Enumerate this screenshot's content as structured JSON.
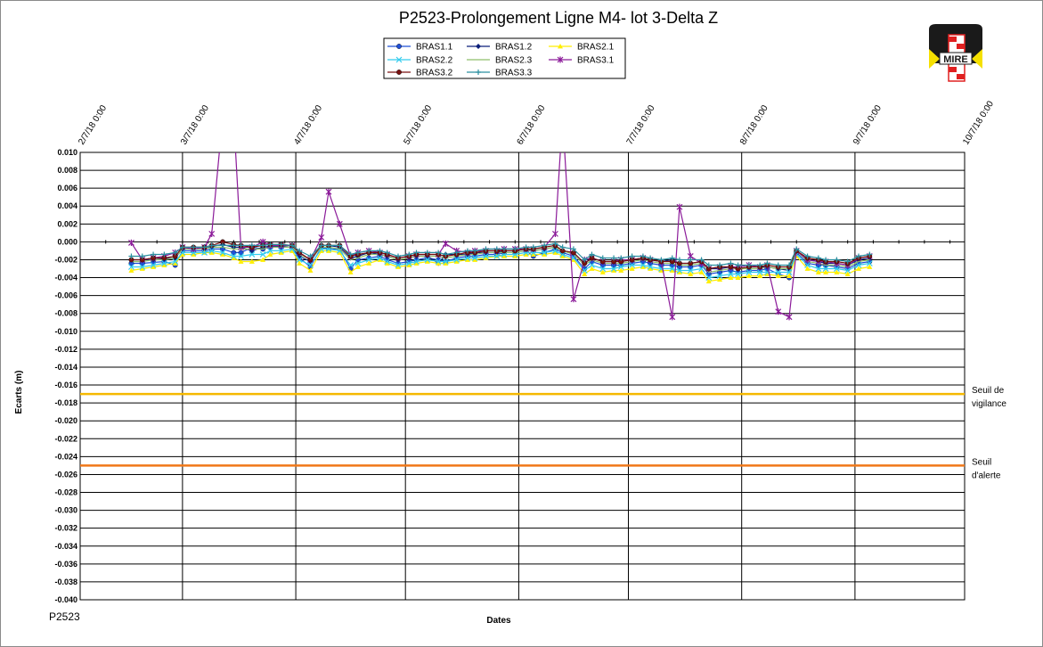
{
  "chart_data": {
    "type": "line",
    "title": "P2523-Prolongement  Ligne  M4-  lot  3-Delta  Z",
    "xlabel": "Dates",
    "ylabel": "Ecarts (m)",
    "footer": "P2523",
    "x_ticks": [
      "2/7/18 0:00",
      "3/7/18 0:00",
      "4/7/18 0:00",
      "5/7/18 0:00",
      "6/7/18 0:00",
      "7/7/18 0:00",
      "8/7/18 0:00",
      "9/7/18 0:00",
      "10/7/18 0:00"
    ],
    "ylim": [
      -0.04,
      0.01
    ],
    "y_ticks": [
      "0.010",
      "0.008",
      "0.006",
      "0.004",
      "0.002",
      "0.000",
      "-0.002",
      "-0.004",
      "-0.006",
      "-0.008",
      "-0.010",
      "-0.012",
      "-0.014",
      "-0.016",
      "-0.018",
      "-0.020",
      "-0.022",
      "-0.024",
      "-0.026",
      "-0.028",
      "-0.030",
      "-0.032",
      "-0.034",
      "-0.036",
      "-0.038",
      "-0.040"
    ],
    "grid": true,
    "legend_position": "top-center",
    "x": [
      "2/21/18",
      "2/24/18",
      "2/27/18",
      "3/2/18",
      "3/5/18",
      "3/7/18",
      "3/10/18",
      "3/13/18",
      "3/15/18",
      "3/18/18",
      "3/21/18",
      "3/23/18",
      "3/26/18",
      "3/29/18",
      "3/31/18",
      "4/3/18",
      "4/6/18",
      "4/8/18",
      "4/11/18",
      "4/14/18",
      "4/16/18",
      "4/19/18",
      "4/22/18",
      "4/24/18",
      "4/27/18",
      "4/30/18",
      "5/2/18",
      "5/5/18",
      "5/8/18",
      "5/10/18",
      "5/13/18",
      "5/16/18",
      "5/18/18",
      "5/21/18",
      "5/24/18",
      "5/26/18",
      "5/29/18",
      "6/1/18",
      "6/3/18",
      "6/6/18",
      "6/9/18",
      "6/11/18",
      "6/14/18",
      "6/17/18",
      "6/19/18",
      "6/22/18",
      "6/25/18",
      "6/27/18",
      "6/30/18",
      "7/3/18",
      "7/5/18",
      "7/8/18",
      "7/11/18",
      "7/13/18",
      "7/16/18",
      "7/19/18",
      "7/21/18",
      "7/24/18",
      "7/27/18",
      "7/29/18",
      "8/1/18",
      "8/4/18",
      "8/6/18",
      "8/9/18",
      "8/12/18",
      "8/14/18",
      "8/17/18",
      "8/20/18",
      "8/22/18",
      "8/25/18",
      "8/28/18",
      "8/30/18",
      "9/2/18",
      "9/5/18",
      "9/8/18",
      "9/11/18"
    ],
    "series": [
      {
        "name": "BRAS1.1",
        "color": "#1f4fd8",
        "marker": "circle",
        "values": [
          -0.0024,
          -0.0024,
          -0.0023,
          -0.0022,
          -0.0026,
          -0.001,
          -0.001,
          -0.001,
          -0.0008,
          -0.0008,
          -0.0012,
          -0.0012,
          -0.0006,
          -0.0008,
          -0.0006,
          -0.0006,
          -0.0006,
          -0.0018,
          -0.0028,
          -0.0006,
          -0.0008,
          -0.0008,
          -0.003,
          -0.002,
          -0.0018,
          -0.0016,
          -0.002,
          -0.0024,
          -0.0022,
          -0.002,
          -0.0018,
          -0.002,
          -0.0022,
          -0.0018,
          -0.0016,
          -0.0016,
          -0.0014,
          -0.0014,
          -0.0012,
          -0.0012,
          -0.001,
          -0.0016,
          -0.0012,
          -0.0008,
          -0.0012,
          -0.0016,
          -0.003,
          -0.0022,
          -0.0026,
          -0.0026,
          -0.0026,
          -0.0024,
          -0.0022,
          -0.0024,
          -0.0026,
          -0.0026,
          -0.0028,
          -0.0028,
          -0.0026,
          -0.0036,
          -0.0034,
          -0.0032,
          -0.0034,
          -0.0032,
          -0.0032,
          -0.003,
          -0.0036,
          -0.004,
          -0.0012,
          -0.0024,
          -0.0026,
          -0.0026,
          -0.0028,
          -0.003,
          -0.0024,
          -0.0022
        ]
      },
      {
        "name": "BRAS1.2",
        "color": "#0c1f7a",
        "marker": "diamond",
        "values": [
          -0.002,
          -0.002,
          -0.002,
          -0.0019,
          -0.0018,
          -0.0008,
          -0.0008,
          -0.0008,
          -0.0005,
          -0.0003,
          -0.0006,
          -0.0006,
          -0.001,
          -0.0006,
          -0.0005,
          -0.0005,
          -0.0006,
          -0.0016,
          -0.0022,
          -0.0004,
          -0.0004,
          -0.0006,
          -0.0018,
          -0.0016,
          -0.0012,
          -0.0014,
          -0.0016,
          -0.002,
          -0.0018,
          -0.0016,
          -0.0016,
          -0.0024,
          -0.0014,
          -0.0014,
          -0.0014,
          -0.0012,
          -0.0012,
          -0.0012,
          -0.001,
          -0.001,
          -0.0008,
          -0.001,
          -0.0008,
          -0.0006,
          -0.001,
          -0.0012,
          -0.0024,
          -0.0018,
          -0.0022,
          -0.0022,
          -0.0022,
          -0.002,
          -0.0018,
          -0.002,
          -0.0022,
          -0.002,
          -0.0024,
          -0.0024,
          -0.0022,
          -0.003,
          -0.003,
          -0.0028,
          -0.003,
          -0.0028,
          -0.0028,
          -0.0028,
          -0.003,
          -0.0032,
          -0.001,
          -0.002,
          -0.0022,
          -0.0024,
          -0.0024,
          -0.0026,
          -0.002,
          -0.0018
        ]
      },
      {
        "name": "BRAS2.1",
        "color": "#ffee00",
        "marker": "triangle",
        "values": [
          -0.0032,
          -0.003,
          -0.0028,
          -0.0026,
          -0.0024,
          -0.0014,
          -0.0014,
          -0.0012,
          -0.0012,
          -0.0014,
          -0.0018,
          -0.0022,
          -0.0022,
          -0.002,
          -0.0014,
          -0.0012,
          -0.001,
          -0.0024,
          -0.0032,
          -0.001,
          -0.001,
          -0.0012,
          -0.0034,
          -0.0028,
          -0.0024,
          -0.002,
          -0.0024,
          -0.0028,
          -0.0026,
          -0.0024,
          -0.0022,
          -0.0024,
          -0.0024,
          -0.0022,
          -0.002,
          -0.002,
          -0.0018,
          -0.0016,
          -0.0016,
          -0.0016,
          -0.0014,
          -0.0014,
          -0.0014,
          -0.0012,
          -0.0016,
          -0.002,
          -0.0036,
          -0.003,
          -0.0034,
          -0.0032,
          -0.0032,
          -0.003,
          -0.0028,
          -0.003,
          -0.0032,
          -0.0032,
          -0.0034,
          -0.0036,
          -0.0034,
          -0.0044,
          -0.0042,
          -0.004,
          -0.004,
          -0.0038,
          -0.0038,
          -0.0036,
          -0.0038,
          -0.0038,
          -0.0016,
          -0.003,
          -0.0034,
          -0.0034,
          -0.0034,
          -0.0036,
          -0.003,
          -0.0028
        ]
      },
      {
        "name": "BRAS2.2",
        "color": "#33ccee",
        "marker": "x",
        "values": [
          -0.0028,
          -0.0028,
          -0.0026,
          -0.0024,
          -0.0022,
          -0.0012,
          -0.0012,
          -0.0012,
          -0.001,
          -0.0012,
          -0.0016,
          -0.0016,
          -0.0014,
          -0.0014,
          -0.001,
          -0.001,
          -0.0008,
          -0.002,
          -0.0026,
          -0.0008,
          -0.0008,
          -0.001,
          -0.0026,
          -0.0024,
          -0.002,
          -0.0018,
          -0.0022,
          -0.0026,
          -0.0024,
          -0.0022,
          -0.002,
          -0.0022,
          -0.0022,
          -0.002,
          -0.0018,
          -0.0018,
          -0.0016,
          -0.0016,
          -0.0014,
          -0.0014,
          -0.0012,
          -0.0012,
          -0.0012,
          -0.001,
          -0.0014,
          -0.0018,
          -0.0032,
          -0.0026,
          -0.003,
          -0.003,
          -0.0028,
          -0.0026,
          -0.0026,
          -0.0028,
          -0.003,
          -0.003,
          -0.0032,
          -0.0032,
          -0.003,
          -0.004,
          -0.0038,
          -0.0036,
          -0.0036,
          -0.0034,
          -0.0034,
          -0.0034,
          -0.0034,
          -0.0034,
          -0.0014,
          -0.0026,
          -0.003,
          -0.003,
          -0.003,
          -0.0032,
          -0.0026,
          -0.0024
        ]
      },
      {
        "name": "BRAS2.3",
        "color": "#8fbf6a",
        "marker": "none",
        "values": [
          -0.0022,
          -0.0022,
          -0.002,
          -0.002,
          -0.0018,
          -0.0008,
          -0.0008,
          -0.0008,
          -0.0006,
          -0.0006,
          -0.0008,
          -0.0008,
          -0.0008,
          -0.0008,
          -0.0006,
          -0.0006,
          -0.0006,
          -0.0014,
          -0.002,
          -0.0006,
          -0.0006,
          -0.0008,
          -0.002,
          -0.0018,
          -0.0014,
          -0.0014,
          -0.0016,
          -0.002,
          -0.0018,
          -0.0016,
          -0.0016,
          -0.0016,
          -0.0018,
          -0.0016,
          -0.0014,
          -0.0014,
          -0.0012,
          -0.0012,
          -0.0012,
          -0.0012,
          -0.001,
          -0.001,
          -0.0008,
          -0.0006,
          -0.001,
          -0.0014,
          -0.0026,
          -0.002,
          -0.0024,
          -0.0024,
          -0.0024,
          -0.0022,
          -0.002,
          -0.0022,
          -0.0024,
          -0.0024,
          -0.0026,
          -0.0026,
          -0.0024,
          -0.0034,
          -0.0032,
          -0.003,
          -0.003,
          -0.003,
          -0.003,
          -0.0028,
          -0.003,
          -0.003,
          -0.001,
          -0.0022,
          -0.0024,
          -0.0026,
          -0.0026,
          -0.0028,
          -0.0022,
          -0.002
        ]
      },
      {
        "name": "BRAS3.1",
        "color": "#8b1a99",
        "marker": "star",
        "values": [
          -0.0001,
          -0.002,
          -0.0018,
          -0.0016,
          -0.0012,
          -0.0006,
          -0.0008,
          -0.0006,
          0.0009,
          0.014,
          0.014,
          -0.0006,
          -0.0006,
          0.0,
          -0.0004,
          -0.0004,
          -0.0004,
          -0.0012,
          -0.002,
          0.0005,
          0.0056,
          0.002,
          -0.0016,
          -0.0012,
          -0.001,
          -0.0012,
          -0.0014,
          -0.0018,
          -0.0016,
          -0.0014,
          -0.0014,
          -0.0014,
          -0.0002,
          -0.001,
          -0.0012,
          -0.001,
          -0.001,
          -0.001,
          -0.0008,
          -0.0008,
          -0.0008,
          -0.0008,
          -0.0006,
          0.0009,
          0.014,
          -0.0064,
          -0.002,
          -0.0018,
          -0.0022,
          -0.0022,
          -0.002,
          -0.002,
          -0.0018,
          -0.002,
          -0.0022,
          -0.0084,
          0.0039,
          -0.0016,
          -0.0024,
          -0.003,
          -0.0028,
          -0.0028,
          -0.0028,
          -0.0026,
          -0.0028,
          -0.0026,
          -0.0078,
          -0.0084,
          -0.001,
          -0.002,
          -0.0022,
          -0.0022,
          -0.0024,
          -0.0026,
          -0.0018,
          -0.0016
        ]
      },
      {
        "name": "BRAS3.2",
        "color": "#7a1010",
        "marker": "circle",
        "values": [
          -0.002,
          -0.002,
          -0.0018,
          -0.0018,
          -0.0016,
          -0.0006,
          -0.0006,
          -0.0006,
          -0.0004,
          0.0,
          -0.0003,
          -0.0004,
          -0.0006,
          -0.0004,
          -0.0003,
          -0.0003,
          -0.0004,
          -0.0012,
          -0.002,
          -0.0004,
          -0.0004,
          -0.0004,
          -0.0016,
          -0.0014,
          -0.0012,
          -0.0012,
          -0.0014,
          -0.0018,
          -0.0016,
          -0.0014,
          -0.0014,
          -0.0014,
          -0.0016,
          -0.0014,
          -0.0012,
          -0.0012,
          -0.001,
          -0.001,
          -0.001,
          -0.001,
          -0.0008,
          -0.0008,
          -0.0006,
          -0.0004,
          -0.001,
          -0.0012,
          -0.0024,
          -0.0018,
          -0.0022,
          -0.0022,
          -0.0022,
          -0.002,
          -0.0018,
          -0.002,
          -0.0022,
          -0.0022,
          -0.0024,
          -0.0024,
          -0.0022,
          -0.003,
          -0.0028,
          -0.0028,
          -0.003,
          -0.0028,
          -0.0028,
          -0.0026,
          -0.0028,
          -0.0028,
          -0.001,
          -0.0018,
          -0.002,
          -0.0022,
          -0.0022,
          -0.0024,
          -0.0018,
          -0.0016
        ]
      },
      {
        "name": "BRAS3.3",
        "color": "#2a8fa0",
        "marker": "plus",
        "values": [
          -0.0016,
          -0.0016,
          -0.0014,
          -0.0014,
          -0.0012,
          -0.0006,
          -0.0006,
          -0.0006,
          -0.0004,
          -0.0004,
          -0.0004,
          -0.0004,
          -0.0004,
          -0.0004,
          -0.0003,
          -0.0003,
          -0.0004,
          -0.001,
          -0.0016,
          -0.0004,
          -0.0004,
          -0.0004,
          -0.0014,
          -0.0012,
          -0.001,
          -0.001,
          -0.0012,
          -0.0016,
          -0.0014,
          -0.0012,
          -0.0012,
          -0.0012,
          -0.0014,
          -0.0012,
          -0.001,
          -0.001,
          -0.0008,
          -0.0008,
          -0.0008,
          -0.0008,
          -0.0006,
          -0.0006,
          -0.0004,
          -0.0002,
          -0.0006,
          -0.0008,
          -0.002,
          -0.0014,
          -0.0018,
          -0.0018,
          -0.0018,
          -0.0016,
          -0.0016,
          -0.0018,
          -0.002,
          -0.0018,
          -0.002,
          -0.002,
          -0.002,
          -0.0026,
          -0.0026,
          -0.0024,
          -0.0026,
          -0.0026,
          -0.0026,
          -0.0024,
          -0.0026,
          -0.0026,
          -0.0008,
          -0.0016,
          -0.0018,
          -0.002,
          -0.002,
          -0.0022,
          -0.0016,
          -0.0014
        ]
      }
    ],
    "thresholds": [
      {
        "name": "Seuil de vigilance",
        "line1": "Seuil de",
        "line2": "vigilance",
        "value": -0.017,
        "color": "#f5b800"
      },
      {
        "name": "Seuil d'alerte",
        "line1": "Seuil",
        "line2": "d'alerte",
        "value": -0.025,
        "color": "#f07818"
      }
    ]
  },
  "logo": {
    "text": "MIRE",
    "colors": {
      "dark": "#1a1a1a",
      "red": "#e02020",
      "yellow": "#f5e000"
    }
  }
}
